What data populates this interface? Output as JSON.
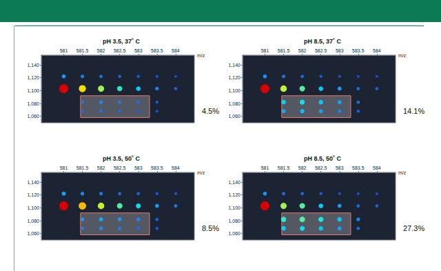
{
  "chart_data": [
    {
      "type": "scatter",
      "title": "pH 3.5, 37˚ C",
      "x_label": "m/z",
      "annotation": "4.5%",
      "grid": false,
      "xlim": [
        580.4,
        584.5
      ],
      "xticks": [
        581,
        581.5,
        582,
        582.5,
        583,
        583.5,
        584
      ],
      "ylim": [
        1050,
        1155
      ],
      "yticks": [
        {
          "value": 1060,
          "label": "1,060"
        },
        {
          "value": 1080,
          "label": "1,080"
        },
        {
          "value": 1100,
          "label": "1,100"
        },
        {
          "value": 1120,
          "label": "1,120"
        },
        {
          "value": 1140,
          "label": "1,140"
        }
      ],
      "highlight": {
        "x": [
          581.45,
          583.3
        ],
        "y": [
          1058,
          1092
        ]
      },
      "intensity_range": [
        0,
        100
      ],
      "x": [
        581,
        581.5,
        582,
        582.5,
        583,
        583.5,
        584,
        581,
        581.5,
        582,
        582.5,
        583,
        583.5,
        584,
        581.5,
        582,
        582.5,
        583,
        583.5,
        581.5,
        582,
        582.5,
        583,
        583.5
      ],
      "values": [
        1103,
        1103,
        1103,
        1103,
        1103,
        1103,
        1103,
        1122,
        1122,
        1122,
        1122,
        1122,
        1122,
        1122,
        1082,
        1082,
        1082,
        1082,
        1082,
        1068,
        1068,
        1068,
        1068,
        1068
      ],
      "intensity": [
        100,
        70,
        55,
        40,
        30,
        15,
        8,
        20,
        14,
        11,
        8,
        6,
        4,
        3,
        12,
        15,
        12,
        10,
        6,
        9,
        11,
        9,
        7,
        4
      ]
    },
    {
      "type": "scatter",
      "title": "pH 8.5, 37˚ C",
      "x_label": "m/z",
      "annotation": "14.1%",
      "grid": false,
      "xlim": [
        580.4,
        584.5
      ],
      "xticks": [
        581,
        581.5,
        582,
        582.5,
        583,
        583.5,
        584
      ],
      "ylim": [
        1050,
        1155
      ],
      "yticks": [
        {
          "value": 1060,
          "label": "1,060"
        },
        {
          "value": 1080,
          "label": "1,080"
        },
        {
          "value": 1100,
          "label": "1,100"
        },
        {
          "value": 1120,
          "label": "1,120"
        },
        {
          "value": 1140,
          "label": "1,140"
        }
      ],
      "highlight": {
        "x": [
          581.45,
          583.3
        ],
        "y": [
          1058,
          1092
        ]
      },
      "intensity_range": [
        0,
        100
      ],
      "x": [
        581,
        581.5,
        582,
        582.5,
        583,
        583.5,
        584,
        581,
        581.5,
        582,
        582.5,
        583,
        583.5,
        584,
        581.5,
        582,
        582.5,
        583,
        583.5,
        581.5,
        582,
        582.5,
        583,
        583.5
      ],
      "values": [
        1103,
        1103,
        1103,
        1103,
        1103,
        1103,
        1103,
        1122,
        1122,
        1122,
        1122,
        1122,
        1122,
        1122,
        1082,
        1082,
        1082,
        1082,
        1082,
        1068,
        1068,
        1068,
        1068,
        1068
      ],
      "intensity": [
        100,
        60,
        45,
        30,
        20,
        10,
        8,
        18,
        12,
        9,
        6,
        4,
        3,
        3,
        30,
        35,
        28,
        20,
        10,
        22,
        26,
        20,
        14,
        7
      ]
    },
    {
      "type": "scatter",
      "title": "pH 3.5, 50˚ C",
      "x_label": "m/z",
      "annotation": "8.5%",
      "grid": false,
      "xlim": [
        580.4,
        584.5
      ],
      "xticks": [
        581,
        581.5,
        582,
        582.5,
        583,
        583.5,
        584
      ],
      "ylim": [
        1050,
        1155
      ],
      "yticks": [
        {
          "value": 1060,
          "label": "1,060"
        },
        {
          "value": 1080,
          "label": "1,080"
        },
        {
          "value": 1100,
          "label": "1,100"
        },
        {
          "value": 1120,
          "label": "1,120"
        },
        {
          "value": 1140,
          "label": "1,140"
        }
      ],
      "highlight": {
        "x": [
          581.45,
          583.3
        ],
        "y": [
          1058,
          1092
        ]
      },
      "intensity_range": [
        0,
        100
      ],
      "x": [
        581,
        581.5,
        582,
        582.5,
        583,
        583.5,
        584,
        581,
        581.5,
        582,
        582.5,
        583,
        583.5,
        584,
        581.5,
        582,
        582.5,
        583,
        583.5,
        581.5,
        582,
        582.5,
        583,
        583.5
      ],
      "values": [
        1103,
        1103,
        1103,
        1103,
        1103,
        1103,
        1103,
        1122,
        1122,
        1122,
        1122,
        1122,
        1122,
        1122,
        1082,
        1082,
        1082,
        1082,
        1082,
        1068,
        1068,
        1068,
        1068,
        1068
      ],
      "intensity": [
        100,
        75,
        60,
        45,
        35,
        20,
        12,
        22,
        16,
        13,
        10,
        8,
        5,
        4,
        18,
        22,
        18,
        15,
        8,
        13,
        16,
        13,
        10,
        6
      ]
    },
    {
      "type": "scatter",
      "title": "pH 8.5, 50˚ C",
      "x_label": "m/z",
      "annotation": "27.3%",
      "grid": false,
      "xlim": [
        580.4,
        584.5
      ],
      "xticks": [
        581,
        581.5,
        582,
        582.5,
        583,
        583.5,
        584
      ],
      "ylim": [
        1050,
        1155
      ],
      "yticks": [
        {
          "value": 1060,
          "label": "1,060"
        },
        {
          "value": 1080,
          "label": "1,080"
        },
        {
          "value": 1100,
          "label": "1,100"
        },
        {
          "value": 1120,
          "label": "1,120"
        },
        {
          "value": 1140,
          "label": "1,140"
        }
      ],
      "highlight": {
        "x": [
          581.45,
          583.3
        ],
        "y": [
          1058,
          1092
        ]
      },
      "intensity_range": [
        0,
        100
      ],
      "x": [
        581,
        581.5,
        582,
        582.5,
        583,
        583.5,
        584,
        581,
        581.5,
        582,
        582.5,
        583,
        583.5,
        584,
        581.5,
        582,
        582.5,
        583,
        583.5,
        581.5,
        582,
        582.5,
        583,
        583.5
      ],
      "values": [
        1103,
        1103,
        1103,
        1103,
        1103,
        1103,
        1103,
        1122,
        1122,
        1122,
        1122,
        1122,
        1122,
        1122,
        1082,
        1082,
        1082,
        1082,
        1082,
        1068,
        1068,
        1068,
        1068,
        1068
      ],
      "intensity": [
        100,
        55,
        45,
        30,
        20,
        10,
        8,
        18,
        11,
        9,
        6,
        4,
        3,
        3,
        40,
        45,
        38,
        28,
        15,
        30,
        34,
        28,
        20,
        10
      ]
    }
  ]
}
